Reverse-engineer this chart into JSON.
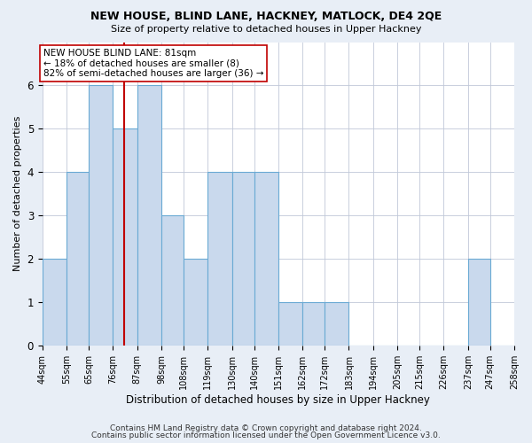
{
  "title1": "NEW HOUSE, BLIND LANE, HACKNEY, MATLOCK, DE4 2QE",
  "title2": "Size of property relative to detached houses in Upper Hackney",
  "xlabel": "Distribution of detached houses by size in Upper Hackney",
  "ylabel": "Number of detached properties",
  "bin_edges": [
    44,
    55,
    65,
    76,
    87,
    98,
    108,
    119,
    130,
    140,
    151,
    162,
    172,
    183,
    194,
    205,
    215,
    226,
    237,
    247,
    258
  ],
  "bar_heights": [
    2,
    4,
    6,
    5,
    6,
    3,
    2,
    4,
    4,
    4,
    1,
    1,
    1,
    0,
    0,
    0,
    0,
    0,
    2,
    0
  ],
  "bar_color": "#c9d9ed",
  "bar_edge_color": "#6aaad4",
  "ref_line_x": 81,
  "ref_line_color": "#c00000",
  "annotation_text": "NEW HOUSE BLIND LANE: 81sqm\n← 18% of detached houses are smaller (8)\n82% of semi-detached houses are larger (36) →",
  "annotation_box_color": "#ffffff",
  "annotation_box_edge_color": "#c00000",
  "ylim": [
    0,
    7
  ],
  "yticks": [
    0,
    1,
    2,
    3,
    4,
    5,
    6
  ],
  "footer1": "Contains HM Land Registry data © Crown copyright and database right 2024.",
  "footer2": "Contains public sector information licensed under the Open Government Licence v3.0.",
  "bg_color": "#e8eef6",
  "plot_bg_color": "#ffffff",
  "grid_color": "#c0c8d8"
}
